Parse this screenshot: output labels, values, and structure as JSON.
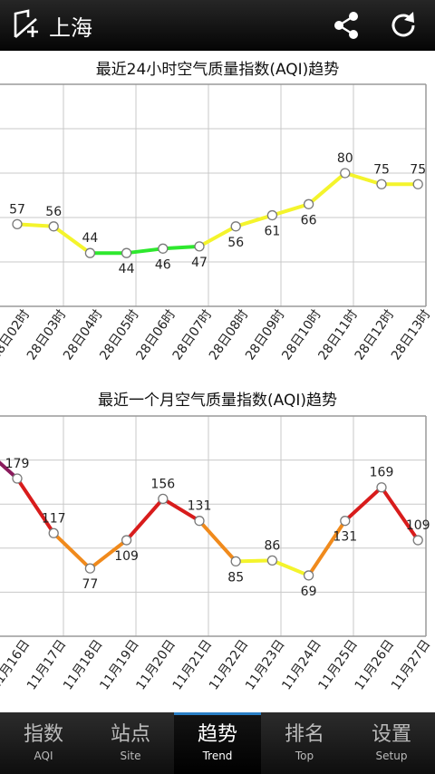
{
  "app": {
    "city": "上海",
    "icons": [
      "city-select-icon",
      "share-icon",
      "refresh-icon"
    ]
  },
  "charts": {
    "hourly_title": "最近24小时空气质量指数(AQI)趋势",
    "monthly_title": "最近一个月空气质量指数(AQI)趋势"
  },
  "chart_data": [
    {
      "type": "line",
      "title": "最近24小时空气质量指数(AQI)趋势",
      "categories": [
        "28日02时",
        "28日03时",
        "28日04时",
        "28日05时",
        "28日06时",
        "28日07时",
        "28日08时",
        "28日09时",
        "28日10时",
        "28日11时",
        "28日12时",
        "28日13时"
      ],
      "values": [
        57,
        56,
        44,
        44,
        46,
        47,
        56,
        61,
        66,
        80,
        75,
        75
      ],
      "ylim": [
        20,
        120
      ],
      "grid": true,
      "colors": {
        "good": "#2ee82e",
        "moderate": "#f4f42c",
        "marker_fill": "#ffffff"
      }
    },
    {
      "type": "line",
      "title": "最近一个月空气质量指数(AQI)趋势",
      "categories": [
        "11月16日",
        "11月17日",
        "11月18日",
        "11月19日",
        "11月20日",
        "11月21日",
        "11月22日",
        "11月23日",
        "11月24日",
        "11月25日",
        "11月26日",
        "11月27日"
      ],
      "values": [
        179,
        117,
        77,
        109,
        156,
        131,
        85,
        86,
        69,
        131,
        169,
        109
      ],
      "ylim": [
        0,
        250
      ],
      "grid": true,
      "colors": {
        "moderate": "#f4f42c",
        "sensitive": "#f08a1c",
        "unhealthy": "#d81c1c",
        "very_unhealthy": "#8a1a5c"
      }
    }
  ],
  "tabs": [
    {
      "zh": "指数",
      "en": "AQI",
      "active": false
    },
    {
      "zh": "站点",
      "en": "Site",
      "active": false
    },
    {
      "zh": "趋势",
      "en": "Trend",
      "active": true
    },
    {
      "zh": "排名",
      "en": "Top",
      "active": false
    },
    {
      "zh": "设置",
      "en": "Setup",
      "active": false
    }
  ]
}
